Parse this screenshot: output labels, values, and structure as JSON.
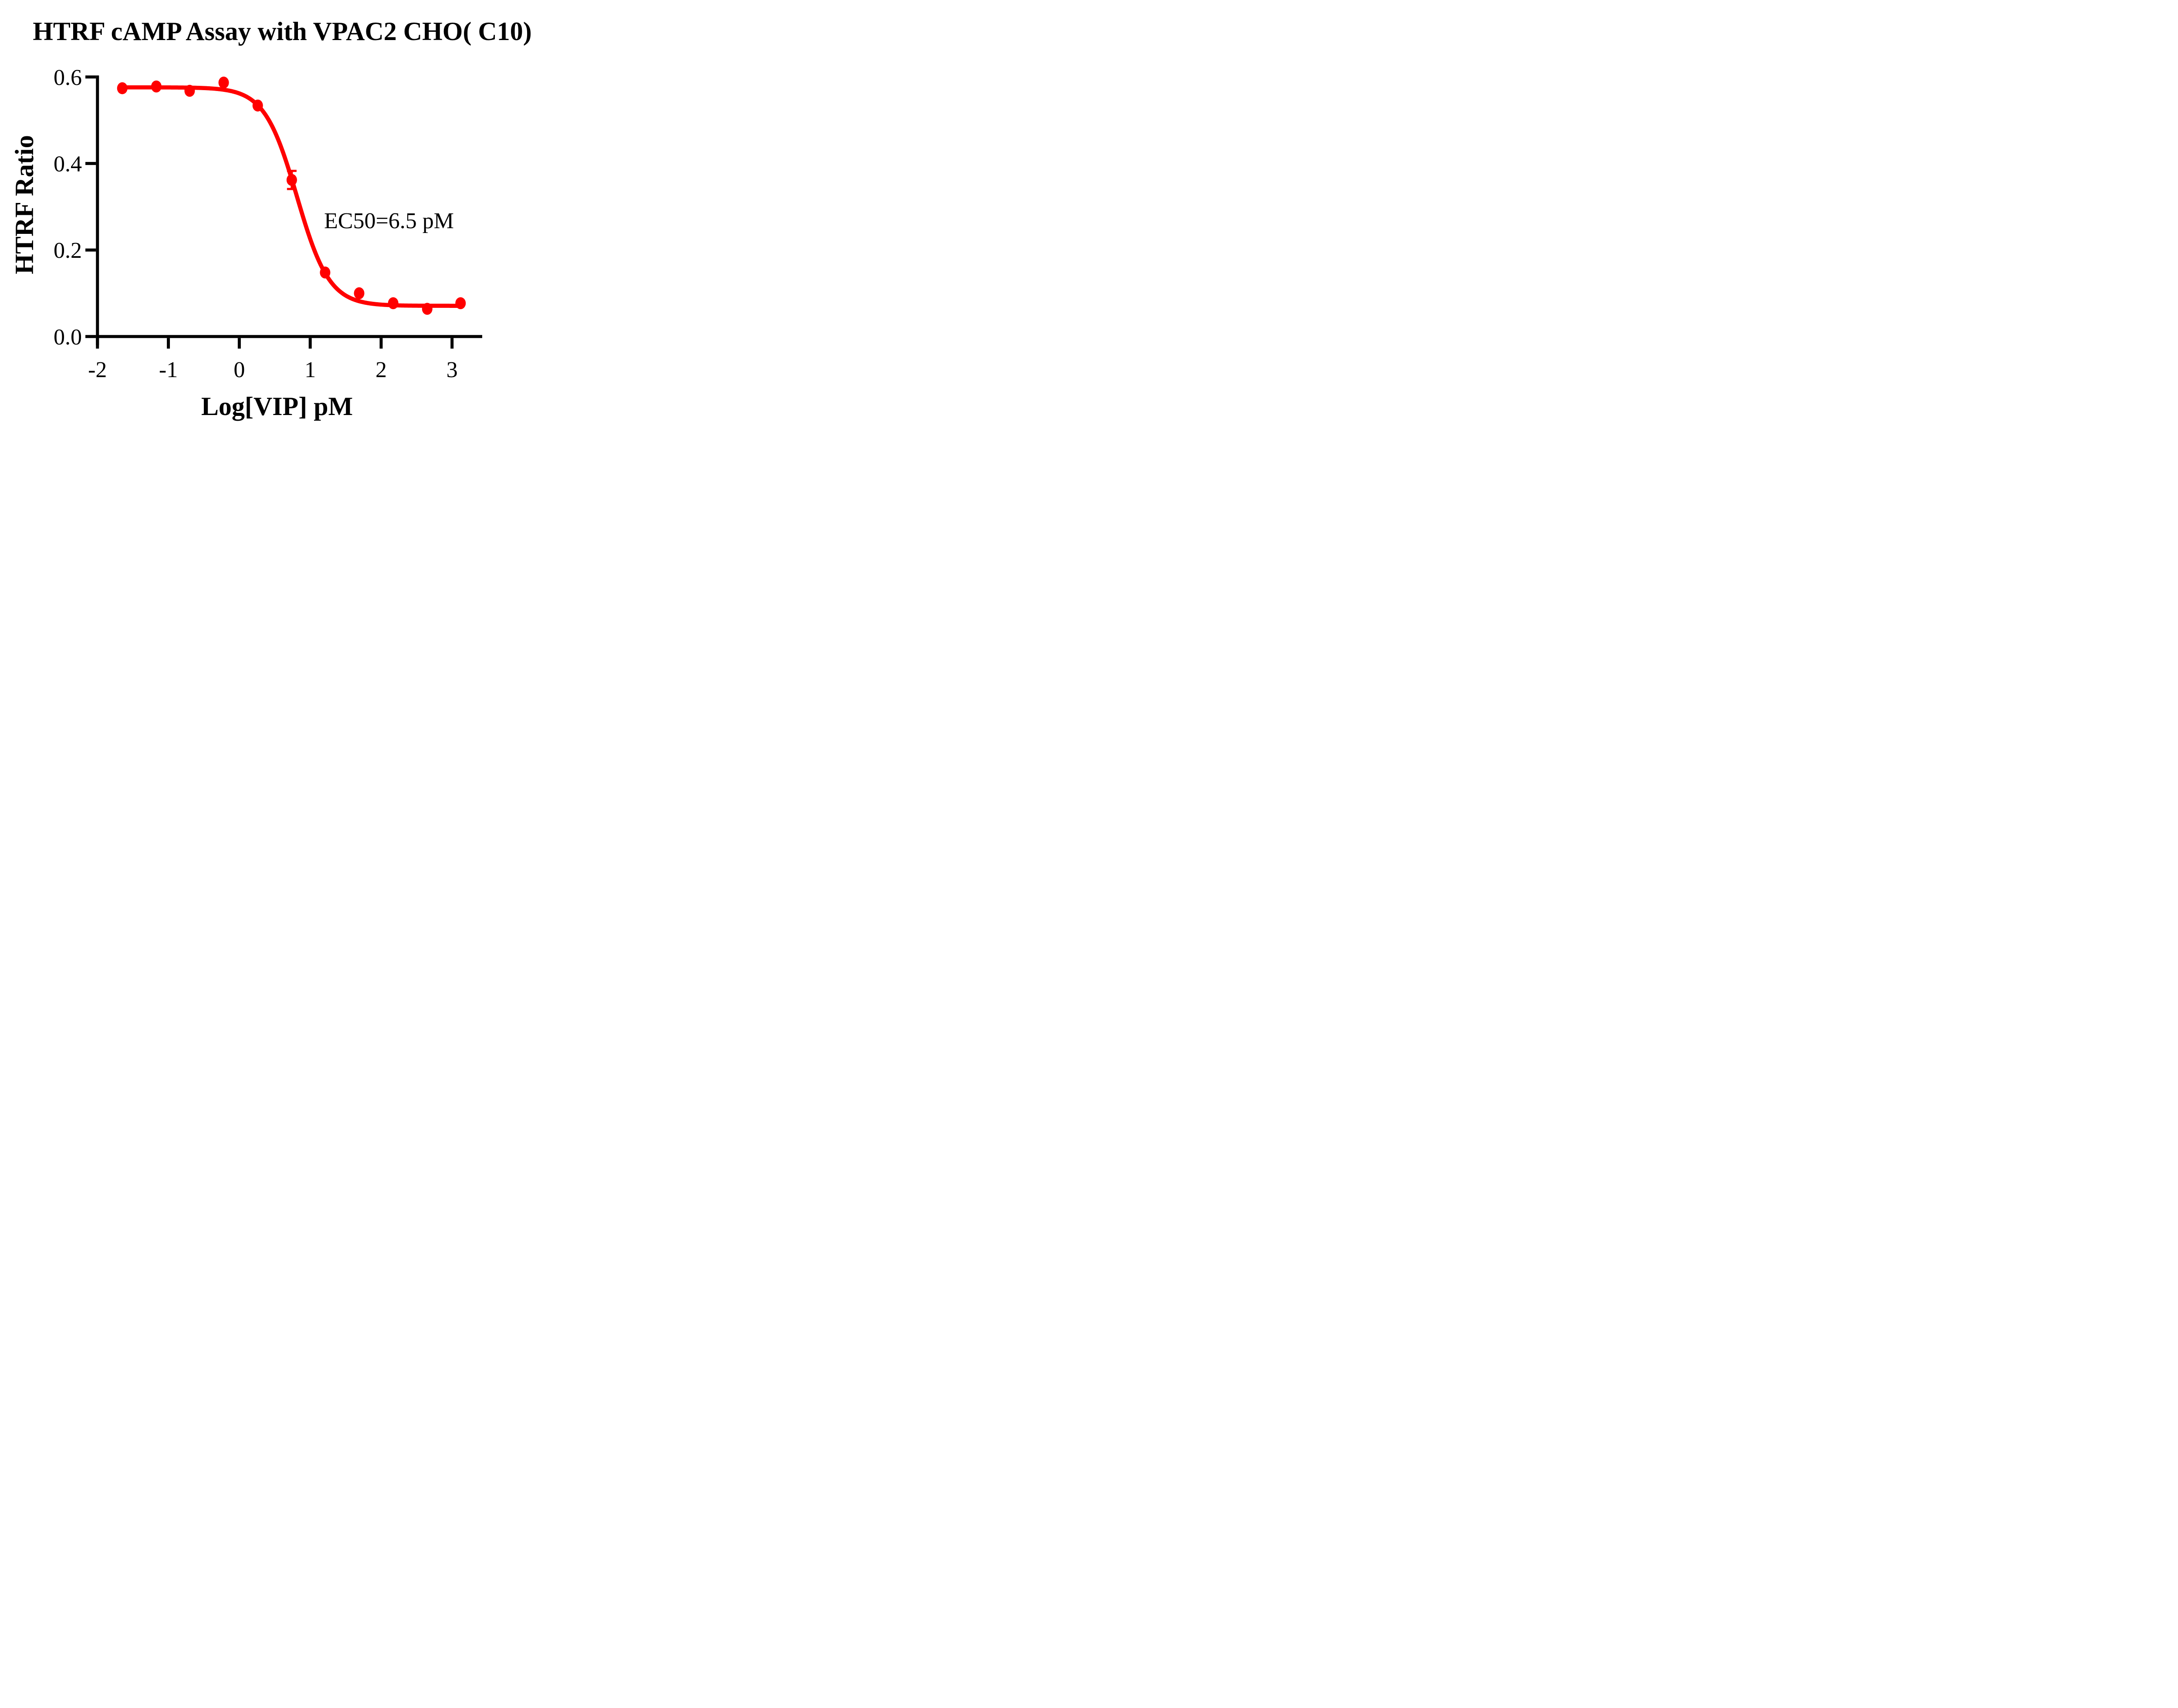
{
  "figure": {
    "background_color": "#ffffff"
  },
  "chart_data": {
    "type": "scatter",
    "subtype": "dose-response-curve",
    "title": "HTRF cAMP Assay with VPAC2 CHO( C10)",
    "xlabel": "Log[VIP] pM",
    "ylabel": "HTRF Ratio",
    "annotation": "EC50=6.5 pM",
    "series_color": "#ff0000",
    "axis_color": "#000000",
    "grid": false,
    "legend": "none",
    "xlim": [
      -2.03,
      3.4
    ],
    "ylim": [
      0,
      0.6
    ],
    "x_ticks": [
      {
        "value": -2,
        "label": "-2"
      },
      {
        "value": -1,
        "label": "-1"
      },
      {
        "value": 0,
        "label": "0"
      },
      {
        "value": 1,
        "label": "1"
      },
      {
        "value": 2,
        "label": "2"
      },
      {
        "value": 3,
        "label": "3"
      }
    ],
    "y_ticks": [
      {
        "value": 0,
        "label": "0.0"
      },
      {
        "value": 0.2,
        "label": "0.2"
      },
      {
        "value": 0.4,
        "label": "0.4"
      },
      {
        "value": 0.6,
        "label": "0.6"
      }
    ],
    "points": [
      {
        "x": -1.65,
        "y": 0.574
      },
      {
        "x": -1.17,
        "y": 0.578
      },
      {
        "x": -0.7,
        "y": 0.568
      },
      {
        "x": -0.22,
        "y": 0.587
      },
      {
        "x": 0.26,
        "y": 0.534
      },
      {
        "x": 0.74,
        "y": 0.362,
        "err": 0.021
      },
      {
        "x": 1.21,
        "y": 0.148
      },
      {
        "x": 1.69,
        "y": 0.1
      },
      {
        "x": 2.17,
        "y": 0.077
      },
      {
        "x": 2.65,
        "y": 0.064
      },
      {
        "x": 3.12,
        "y": 0.077
      }
    ],
    "fit_curve": {
      "model": "four_parameter_logistic",
      "top": 0.576,
      "bottom": 0.071,
      "log_ec50": 0.813,
      "ec50_pM": 6.5,
      "hill_slope": 1.9,
      "x_start": -1.65,
      "x_end": 3.12
    }
  }
}
